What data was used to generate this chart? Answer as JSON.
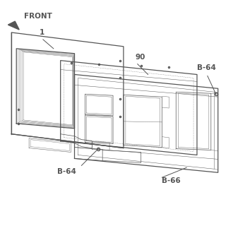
{
  "background_color": "#ffffff",
  "line_color": "#555555",
  "labels": {
    "B64_top": "B-64",
    "B66": "B-66",
    "num90": "90",
    "num1": "1",
    "B64_bot": "B-64",
    "FRONT": "FRONT"
  }
}
